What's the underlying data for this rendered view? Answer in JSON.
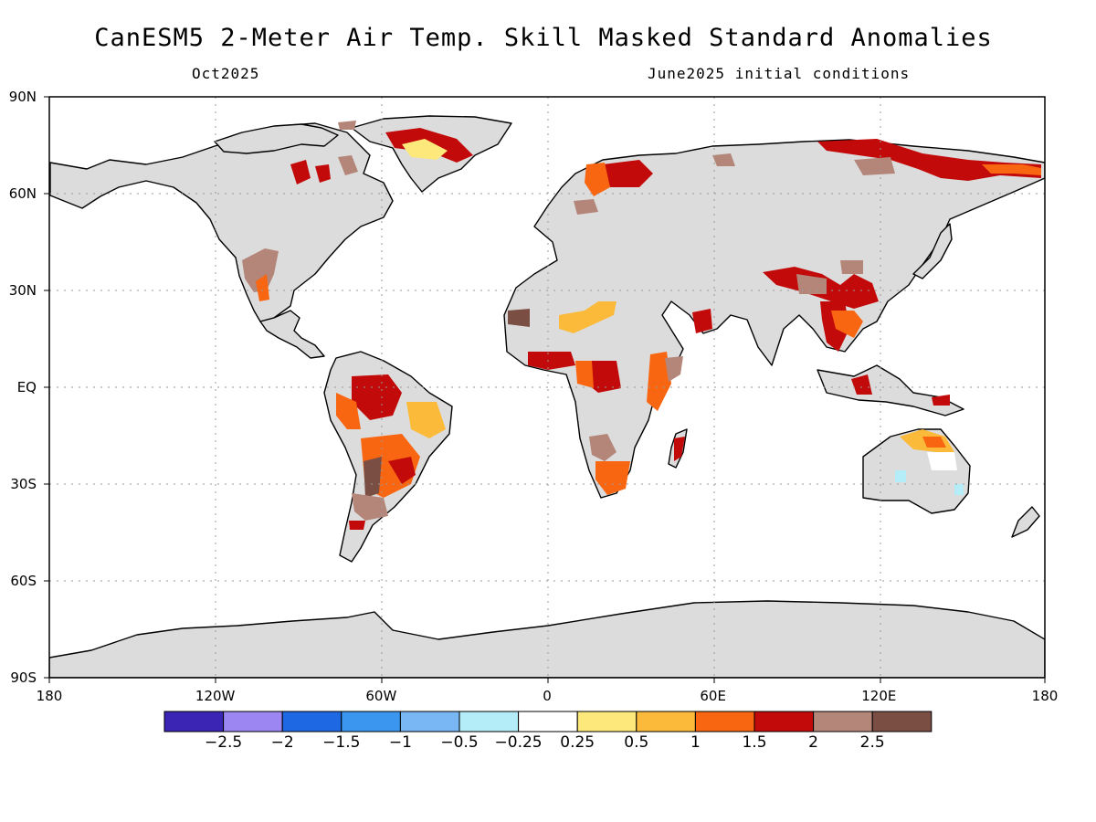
{
  "title": "CanESM5 2-Meter Air Temp. Skill Masked Standard Anomalies",
  "subtitle_left": "Oct2025",
  "subtitle_right": "June2025 initial conditions",
  "axes": {
    "lat_labels": [
      "90N",
      "60N",
      "30N",
      "EQ",
      "30S",
      "60S",
      "90S"
    ],
    "lon_labels": [
      "180",
      "120W",
      "60W",
      "0",
      "60E",
      "120E",
      "180"
    ],
    "grid": "dotted"
  },
  "colorbar": {
    "colors": [
      "#3a25b5",
      "#9b86f2",
      "#1f68e3",
      "#3b96ef",
      "#78b6f4",
      "#b4ecf8",
      "#ffffff",
      "#fde87c",
      "#fbba3a",
      "#f96611",
      "#c20a0a",
      "#b48679",
      "#7a4e43"
    ],
    "labels": [
      "−2.5",
      "−2",
      "−1.5",
      "−1",
      "−0.5",
      "−0.25",
      "0.25",
      "0.5",
      "1",
      "1.5",
      "2",
      "2.5"
    ]
  },
  "colors": {
    "land_neutral": "#dcdcdc",
    "coastline": "#000000"
  }
}
